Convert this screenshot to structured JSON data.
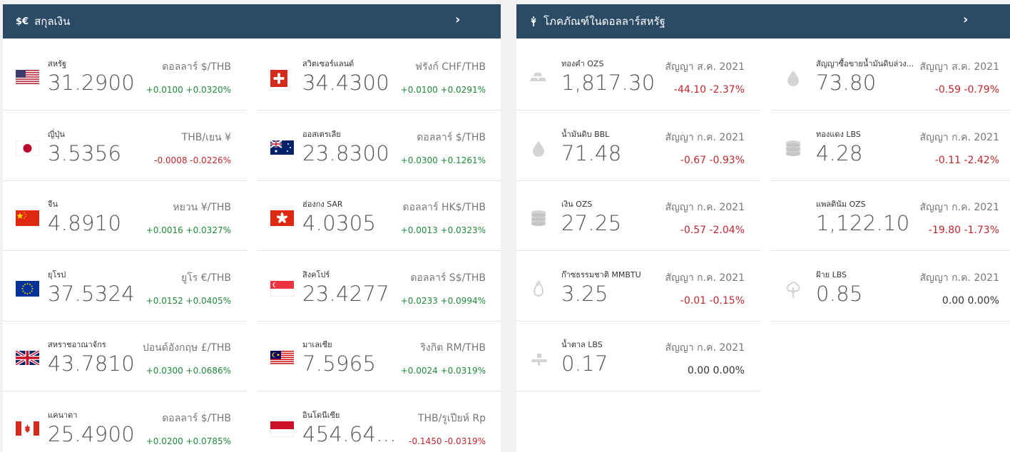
{
  "currency_panel": {
    "title": "สกุลเงิน",
    "icon": "currency-icon",
    "icon_text": "$€",
    "more_glyph": "›",
    "items": [
      {
        "name": "สหรัฐ",
        "price": "31.2900",
        "unit": "ดอลลาร์ $/THB",
        "change": "+0.0100 +0.0320%",
        "dir": "up",
        "flag": "us-flag-icon"
      },
      {
        "name": "สวิตเซอร์แลนด์",
        "price": "34.4300",
        "unit": "ฟรังก์ CHF/THB",
        "change": "+0.0100 +0.0291%",
        "dir": "up",
        "flag": "ch-flag-icon"
      },
      {
        "name": "ญี่ปุ่น",
        "price": "3.5356",
        "unit": "THB/เยน ¥",
        "change": "-0.0008 -0.0226%",
        "dir": "down",
        "flag": "jp-flag-icon"
      },
      {
        "name": "ออสเตรเลีย",
        "price": "23.8300",
        "unit": "ดอลลาร์ $/THB",
        "change": "+0.0300 +0.1261%",
        "dir": "up",
        "flag": "au-flag-icon"
      },
      {
        "name": "จีน",
        "price": "4.8910",
        "unit": "หยวน ¥/THB",
        "change": "+0.0016 +0.0327%",
        "dir": "up",
        "flag": "cn-flag-icon"
      },
      {
        "name": "ฮ่องกง SAR",
        "price": "4.0305",
        "unit": "ดอลลาร์ HK$/THB",
        "change": "+0.0013 +0.0323%",
        "dir": "up",
        "flag": "hk-flag-icon"
      },
      {
        "name": "ยุโรป",
        "price": "37.5324",
        "unit": "ยูโร €/THB",
        "change": "+0.0152 +0.0405%",
        "dir": "up",
        "flag": "eu-flag-icon"
      },
      {
        "name": "สิงคโปร์",
        "price": "23.4277",
        "unit": "ดอลลาร์ S$/THB",
        "change": "+0.0233 +0.0994%",
        "dir": "up",
        "flag": "sg-flag-icon"
      },
      {
        "name": "สหราชอาณาจักร",
        "price": "43.7810",
        "unit": "ปอนด์อังกฤษ £/THB",
        "change": "+0.0300 +0.0686%",
        "dir": "up",
        "flag": "gb-flag-icon"
      },
      {
        "name": "มาเลเซีย",
        "price": "7.5965",
        "unit": "ริงกิต RM/THB",
        "change": "+0.0024 +0.0319%",
        "dir": "up",
        "flag": "my-flag-icon"
      },
      {
        "name": "แคนาดา",
        "price": "25.4900",
        "unit": "ดอลลาร์ $/THB",
        "change": "+0.0200 +0.0785%",
        "dir": "up",
        "flag": "ca-flag-icon"
      },
      {
        "name": "อินโดนีเซีย",
        "price": "454.64...",
        "unit": "THB/รูเปียห์ Rp",
        "change": "-0.1450 -0.0319%",
        "dir": "down",
        "flag": "id-flag-icon"
      }
    ]
  },
  "commodity_panel": {
    "title": "โภคภัณฑ์ในดอลลาร์สหรัฐ",
    "icon": "wheat-icon",
    "more_glyph": "›",
    "items": [
      {
        "name": "ทองคำ OZS",
        "price": "1,817.30",
        "unit": "สัญญา ส.ค. 2021",
        "change": "-44.10 -2.37%",
        "dir": "down",
        "icon": "gold-bars-icon"
      },
      {
        "name": "สัญญาซื้อขายน้ำมันดิบล่วง...",
        "price": "73.80",
        "unit": "สัญญา ส.ค. 2021",
        "change": "-0.59 -0.79%",
        "dir": "down",
        "icon": "oil-drop-icon"
      },
      {
        "name": "น้ำมันดิบ BBL",
        "price": "71.48",
        "unit": "สัญญา ก.ค. 2021",
        "change": "-0.67 -0.93%",
        "dir": "down",
        "icon": "oil-drop-icon"
      },
      {
        "name": "ทองแดง LBS",
        "price": "4.28",
        "unit": "สัญญา ก.ค. 2021",
        "change": "-0.11 -2.42%",
        "dir": "down",
        "icon": "coins-icon"
      },
      {
        "name": "เงิน OZS",
        "price": "27.25",
        "unit": "สัญญา ก.ค. 2021",
        "change": "-0.57 -2.04%",
        "dir": "down",
        "icon": "coins-icon"
      },
      {
        "name": "แพลตินัม OZS",
        "price": "1,122.10",
        "unit": "สัญญา ก.ค. 2021",
        "change": "-19.80 -1.73%",
        "dir": "down",
        "icon": ""
      },
      {
        "name": "ก๊าซธรรมชาติ MMBTU",
        "price": "3.25",
        "unit": "สัญญา ก.ค. 2021",
        "change": "-0.01 -0.15%",
        "dir": "down",
        "icon": "flame-icon"
      },
      {
        "name": "ฝ้าย LBS",
        "price": "0.85",
        "unit": "สัญญา ก.ค. 2021",
        "change": "0.00 0.00%",
        "dir": "flat",
        "icon": "cotton-icon"
      },
      {
        "name": "น้ำตาล LBS",
        "price": "0.17",
        "unit": "สัญญา ก.ค. 2021",
        "change": "0.00 0.00%",
        "dir": "flat",
        "icon": "sugar-icon"
      }
    ]
  },
  "colors": {
    "header": "#2b4a66",
    "up": "#1f8a3b",
    "down": "#c0272d"
  }
}
